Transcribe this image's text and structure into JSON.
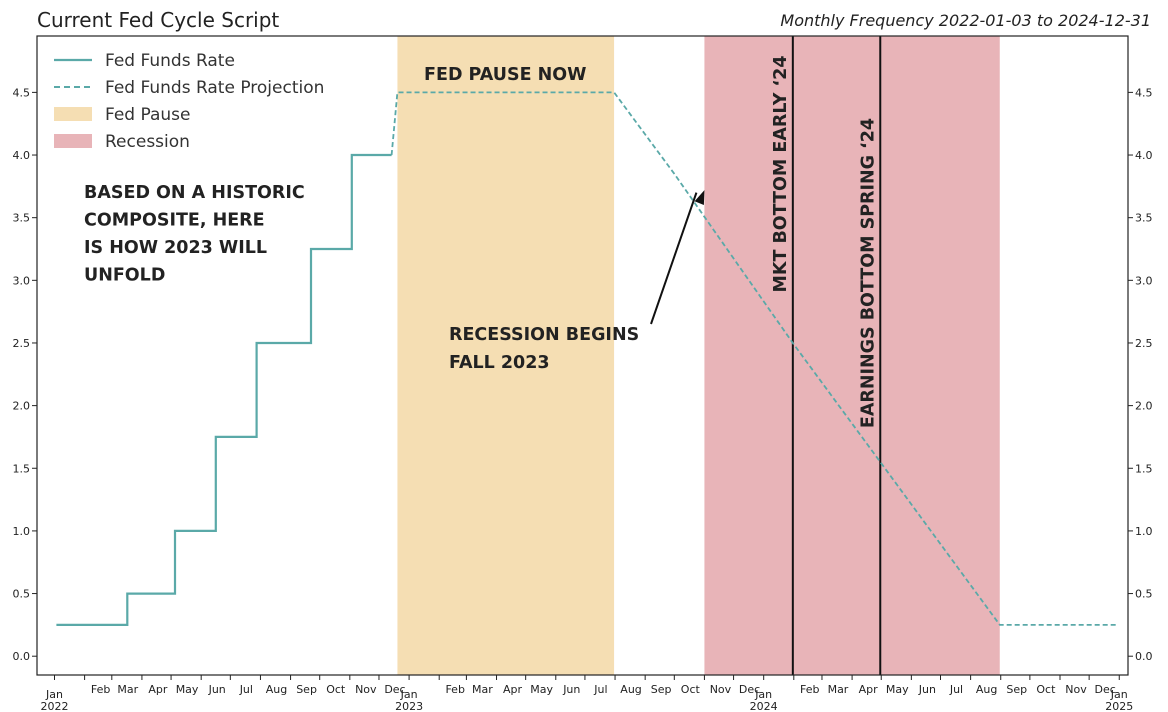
{
  "chart_data": {
    "type": "line",
    "title": "Current Fed Cycle Script",
    "subtitle": "Monthly Frequency 2022-01-03 to 2024-12-31",
    "xlabel": "",
    "ylabel": "",
    "ylim": [
      -0.15,
      4.95
    ],
    "y_ticks": [
      "0.0",
      "0.5",
      "1.0",
      "1.5",
      "2.0",
      "2.5",
      "3.0",
      "3.5",
      "4.0",
      "4.5"
    ],
    "y_tick_values": [
      0,
      0.5,
      1.0,
      1.5,
      2.0,
      2.5,
      3.0,
      3.5,
      4.0,
      4.5
    ],
    "xlim": [
      "2021-12-14",
      "2025-01-10"
    ],
    "x_ticks": [
      {
        "date": "2022-01-01",
        "label": "Jan",
        "year": "2022"
      },
      {
        "date": "2022-02-01",
        "label": "Feb"
      },
      {
        "date": "2022-03-01",
        "label": "Mar"
      },
      {
        "date": "2022-04-01",
        "label": "Apr"
      },
      {
        "date": "2022-05-01",
        "label": "May"
      },
      {
        "date": "2022-06-01",
        "label": "Jun"
      },
      {
        "date": "2022-07-01",
        "label": "Jul"
      },
      {
        "date": "2022-08-01",
        "label": "Aug"
      },
      {
        "date": "2022-09-01",
        "label": "Sep"
      },
      {
        "date": "2022-10-01",
        "label": "Oct"
      },
      {
        "date": "2022-11-01",
        "label": "Nov"
      },
      {
        "date": "2022-12-01",
        "label": "Dec"
      },
      {
        "date": "2023-01-01",
        "label": "Jan",
        "year": "2023"
      },
      {
        "date": "2023-02-01",
        "label": "Feb"
      },
      {
        "date": "2023-03-01",
        "label": "Mar"
      },
      {
        "date": "2023-04-01",
        "label": "Apr"
      },
      {
        "date": "2023-05-01",
        "label": "May"
      },
      {
        "date": "2023-06-01",
        "label": "Jun"
      },
      {
        "date": "2023-07-01",
        "label": "Jul"
      },
      {
        "date": "2023-08-01",
        "label": "Aug"
      },
      {
        "date": "2023-09-01",
        "label": "Sep"
      },
      {
        "date": "2023-10-01",
        "label": "Oct"
      },
      {
        "date": "2023-11-01",
        "label": "Nov"
      },
      {
        "date": "2023-12-01",
        "label": "Dec"
      },
      {
        "date": "2024-01-01",
        "label": "Jan",
        "year": "2024"
      },
      {
        "date": "2024-02-01",
        "label": "Feb"
      },
      {
        "date": "2024-03-01",
        "label": "Mar"
      },
      {
        "date": "2024-04-01",
        "label": "Apr"
      },
      {
        "date": "2024-05-01",
        "label": "May"
      },
      {
        "date": "2024-06-01",
        "label": "Jun"
      },
      {
        "date": "2024-07-01",
        "label": "Jul"
      },
      {
        "date": "2024-08-01",
        "label": "Aug"
      },
      {
        "date": "2024-09-01",
        "label": "Sep"
      },
      {
        "date": "2024-10-01",
        "label": "Oct"
      },
      {
        "date": "2024-11-01",
        "label": "Nov"
      },
      {
        "date": "2024-12-01",
        "label": "Dec"
      },
      {
        "date": "2025-01-01",
        "label": "Jan",
        "year": "2025"
      }
    ],
    "series": [
      {
        "name": "Fed Funds Rate",
        "style": "solid",
        "color": "#5aa9a8",
        "step": true,
        "points": [
          {
            "x": "2022-01-03",
            "y": 0.25
          },
          {
            "x": "2022-03-17",
            "y": 0.5
          },
          {
            "x": "2022-05-05",
            "y": 1.0
          },
          {
            "x": "2022-06-16",
            "y": 1.75
          },
          {
            "x": "2022-07-28",
            "y": 2.5
          },
          {
            "x": "2022-09-22",
            "y": 3.25
          },
          {
            "x": "2022-11-03",
            "y": 4.0
          },
          {
            "x": "2022-12-14",
            "y": 4.0
          }
        ]
      },
      {
        "name": "Fed Funds Rate Projection",
        "style": "dashed",
        "color": "#5aa9a8",
        "points": [
          {
            "x": "2022-12-14",
            "y": 4.0
          },
          {
            "x": "2022-12-20",
            "y": 4.5
          },
          {
            "x": "2023-07-31",
            "y": 4.5
          },
          {
            "x": "2023-10-01",
            "y": 3.85
          },
          {
            "x": "2024-01-31",
            "y": 2.5
          },
          {
            "x": "2024-04-30",
            "y": 1.55
          },
          {
            "x": "2024-08-31",
            "y": 0.25
          },
          {
            "x": "2024-12-31",
            "y": 0.25
          }
        ]
      }
    ],
    "shaded_regions": [
      {
        "name": "Fed Pause",
        "start": "2022-12-20",
        "end": "2023-07-31",
        "color": "#f5deb3"
      },
      {
        "name": "Recession",
        "start": "2023-11-01",
        "end": "2024-08-31",
        "color": "#e8b4b8"
      }
    ],
    "vertical_lines": [
      {
        "date": "2024-01-31",
        "label": "MKT BOTTOM EARLY ‘24"
      },
      {
        "date": "2024-04-30",
        "label": "EARNINGS BOTTOM SPRING ‘24"
      }
    ],
    "legend": {
      "placement": "top-left",
      "entries": [
        {
          "label": "Fed Funds Rate",
          "kind": "line-solid",
          "color": "#5aa9a8"
        },
        {
          "label": "Fed Funds Rate Projection",
          "kind": "line-dashed",
          "color": "#5aa9a8"
        },
        {
          "label": "Fed Pause",
          "kind": "patch",
          "color": "#f5deb3"
        },
        {
          "label": "Recession",
          "kind": "patch",
          "color": "#e8b4b8"
        }
      ]
    },
    "annotations": {
      "composite": [
        "BASED ON A HISTORIC",
        "COMPOSITE, HERE",
        "IS HOW 2023 WILL",
        "UNFOLD"
      ],
      "pause": "FED PAUSE NOW",
      "recession": [
        "RECESSION BEGINS",
        "FALL 2023"
      ]
    },
    "grid": false
  }
}
